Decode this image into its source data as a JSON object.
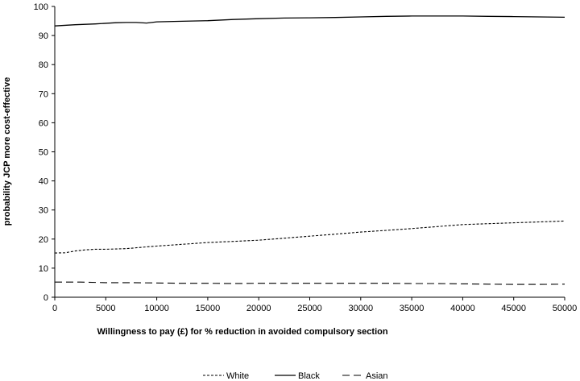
{
  "chart_data": {
    "type": "line",
    "title": "",
    "xlabel": "Willingness to pay (£) for % reduction in avoided compulsory section",
    "ylabel": "probability JCP more cost-effective",
    "xlim": [
      0,
      50000
    ],
    "ylim": [
      0,
      100
    ],
    "x_ticks": [
      0,
      5000,
      10000,
      15000,
      20000,
      25000,
      30000,
      35000,
      40000,
      45000,
      50000
    ],
    "y_ticks": [
      0,
      10,
      20,
      30,
      40,
      50,
      60,
      70,
      80,
      90,
      100
    ],
    "grid": false,
    "legend_position": "bottom",
    "series": [
      {
        "name": "White",
        "line_style": "short-dash",
        "color": "#000000",
        "x": [
          0,
          1000,
          2000,
          3000,
          4000,
          5000,
          6000,
          7000,
          8000,
          9000,
          10000,
          12500,
          15000,
          17500,
          20000,
          22500,
          25000,
          27500,
          30000,
          32500,
          35000,
          37500,
          40000,
          42500,
          45000,
          47500,
          50000
        ],
        "y": [
          15.2,
          15.3,
          15.9,
          16.3,
          16.5,
          16.5,
          16.6,
          16.7,
          17.0,
          17.3,
          17.6,
          18.2,
          18.8,
          19.2,
          19.6,
          20.3,
          21.0,
          21.7,
          22.4,
          23.0,
          23.6,
          24.3,
          25.0,
          25.3,
          25.6,
          25.9,
          26.2
        ]
      },
      {
        "name": "Black",
        "line_style": "solid",
        "color": "#000000",
        "x": [
          0,
          2000,
          4000,
          6000,
          7000,
          8000,
          9000,
          10000,
          12500,
          15000,
          17500,
          20000,
          22500,
          25000,
          27500,
          30000,
          32500,
          35000,
          37500,
          40000,
          42500,
          45000,
          47500,
          50000
        ],
        "y": [
          93.3,
          93.7,
          94.0,
          94.4,
          94.5,
          94.5,
          94.3,
          94.7,
          94.9,
          95.1,
          95.5,
          95.8,
          96.0,
          96.1,
          96.2,
          96.4,
          96.6,
          96.7,
          96.7,
          96.7,
          96.6,
          96.5,
          96.4,
          96.3
        ]
      },
      {
        "name": "Asian",
        "line_style": "long-dash",
        "color": "#000000",
        "x": [
          0,
          2500,
          5000,
          7500,
          10000,
          12500,
          15000,
          17500,
          20000,
          22500,
          25000,
          27500,
          30000,
          32500,
          35000,
          37500,
          40000,
          42500,
          45000,
          47500,
          50000
        ],
        "y": [
          5.2,
          5.2,
          5.0,
          5.0,
          4.9,
          4.8,
          4.8,
          4.7,
          4.8,
          4.8,
          4.8,
          4.8,
          4.8,
          4.8,
          4.7,
          4.7,
          4.6,
          4.5,
          4.4,
          4.4,
          4.5
        ]
      }
    ]
  }
}
